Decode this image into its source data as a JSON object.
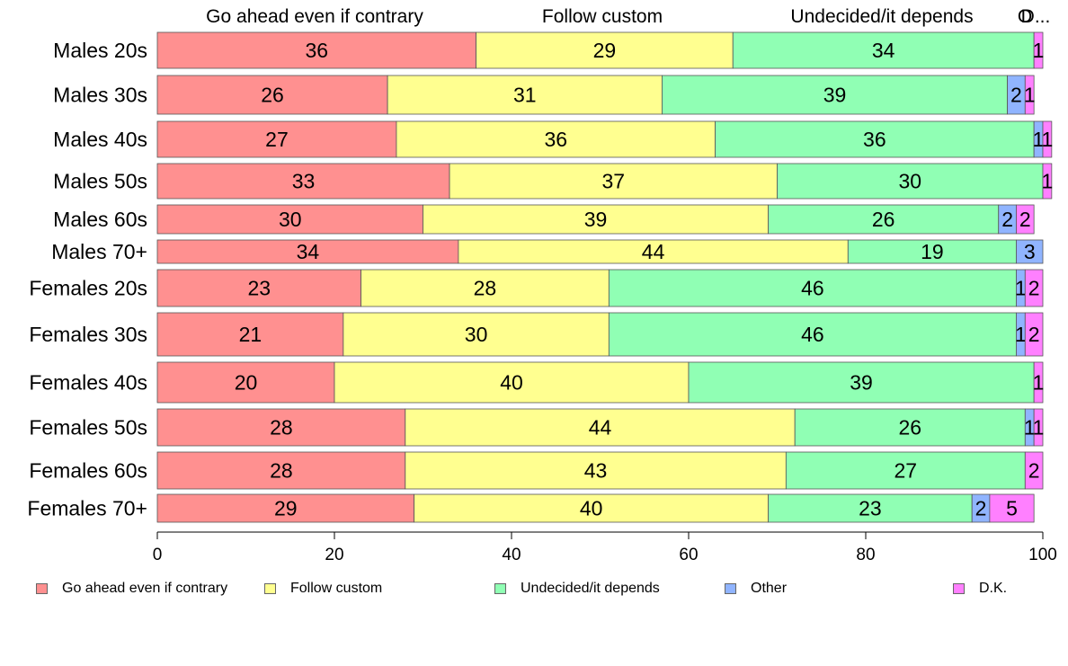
{
  "chart_data": {
    "type": "bar",
    "orientation": "horizontal",
    "stacked": true,
    "categories": [
      "Males 20s",
      "Males 30s",
      "Males 40s",
      "Males 50s",
      "Males 60s",
      "Males 70+",
      "Females 20s",
      "Females 30s",
      "Females 40s",
      "Females 50s",
      "Females 60s",
      "Females 70+"
    ],
    "series": [
      {
        "name": "Go ahead even if contrary",
        "color": "#FF9090",
        "values": [
          36,
          26,
          27,
          33,
          30,
          34,
          23,
          21,
          20,
          28,
          28,
          29
        ]
      },
      {
        "name": "Follow custom",
        "color": "#FFFF90",
        "values": [
          29,
          31,
          36,
          37,
          39,
          44,
          28,
          30,
          40,
          44,
          43,
          40
        ]
      },
      {
        "name": "Undecided/it depends",
        "color": "#90FFB4",
        "values": [
          34,
          39,
          36,
          30,
          26,
          19,
          46,
          46,
          39,
          26,
          27,
          23
        ]
      },
      {
        "name": "Other",
        "color": "#90B4FF",
        "values": [
          0,
          2,
          1,
          0,
          2,
          3,
          1,
          1,
          0,
          1,
          0,
          2
        ]
      },
      {
        "name": "D.K.",
        "color": "#FF80FF",
        "values": [
          1,
          1,
          1,
          1,
          2,
          0,
          2,
          2,
          1,
          1,
          2,
          5
        ]
      }
    ],
    "top_labels": [
      "Go ahead even if contrary",
      "Follow custom",
      "Undecided/it depends",
      "O",
      "D..."
    ],
    "xlim": [
      0,
      100
    ],
    "xticks": [
      0,
      20,
      40,
      60,
      80,
      100
    ],
    "legend_position": "bottom",
    "grid": false
  }
}
